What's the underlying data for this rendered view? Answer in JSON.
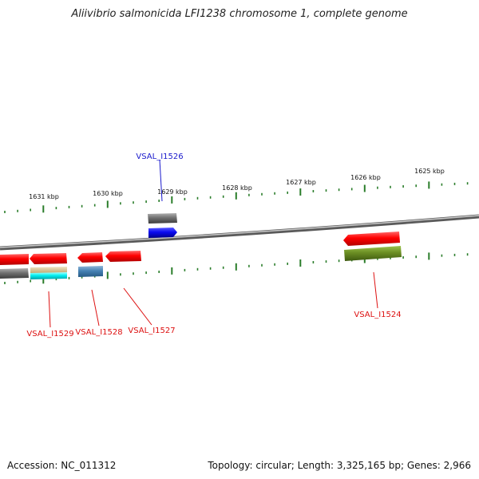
{
  "title": "Aliivibrio salmonicida LFI1238 chromosome 1, complete genome",
  "accession": "Accession: NC_011312",
  "summary": "Topology: circular; Length: 3,325,165 bp; Genes: 2,966",
  "ruler_labels": [
    "1631 kbp",
    "1630 kbp",
    "1629 kbp",
    "1628 kbp",
    "1627 kbp",
    "1626 kbp",
    "1625 kbp"
  ],
  "gene_labels": {
    "g1526": "VSAL_I1526",
    "g1524": "VSAL_I1524",
    "g1529": "VSAL_I1529",
    "g1528": "VSAL_I1528",
    "g1527": "VSAL_I1527"
  },
  "colors": {
    "forward_gene": "#ff0000",
    "reverse_gene": "#1010ee",
    "ticks": "#2a7d2a",
    "backbone": "#8a8a8a",
    "label_blue": "#1a1acc",
    "label_red": "#dd1111"
  }
}
